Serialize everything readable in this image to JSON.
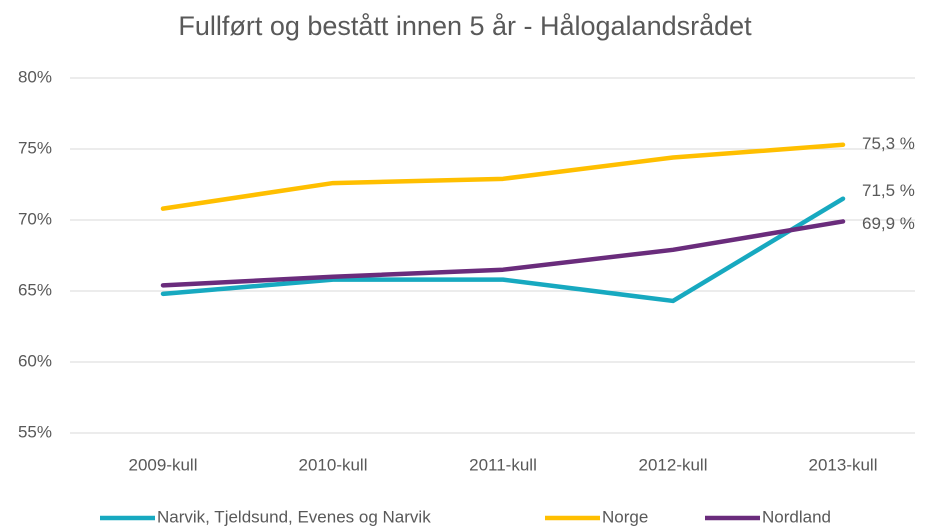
{
  "chart_data": {
    "type": "line",
    "title": "Fullført og bestått innen 5 år - Hålogalandsrådet",
    "categories": [
      "2009-kull",
      "2010-kull",
      "2011-kull",
      "2012-kull",
      "2013-kull"
    ],
    "series": [
      {
        "name": "Narvik, Tjeldsund, Evenes og Narvik",
        "color": "#17a9c0",
        "values": [
          64.8,
          65.8,
          65.8,
          64.3,
          71.5
        ],
        "value_labels": [
          null,
          null,
          null,
          null,
          "71,5 %"
        ]
      },
      {
        "name": "Norge",
        "color": "#ffbf00",
        "values": [
          70.8,
          72.6,
          72.9,
          74.4,
          75.3
        ],
        "value_labels": [
          null,
          null,
          null,
          null,
          "75,3 %"
        ]
      },
      {
        "name": "Nordland",
        "color": "#6a2c7c",
        "values": [
          65.4,
          66.0,
          66.5,
          67.9,
          69.9
        ],
        "value_labels": [
          null,
          null,
          null,
          null,
          "69,9 %"
        ]
      }
    ],
    "ylim": [
      55,
      80
    ],
    "yticks": [
      {
        "value": 55,
        "label": "55%"
      },
      {
        "value": 60,
        "label": "60%"
      },
      {
        "value": 65,
        "label": "65%"
      },
      {
        "value": 70,
        "label": "70%"
      },
      {
        "value": 75,
        "label": "75%"
      },
      {
        "value": 80,
        "label": "80%"
      }
    ],
    "grid": true,
    "legend": "bottom"
  }
}
